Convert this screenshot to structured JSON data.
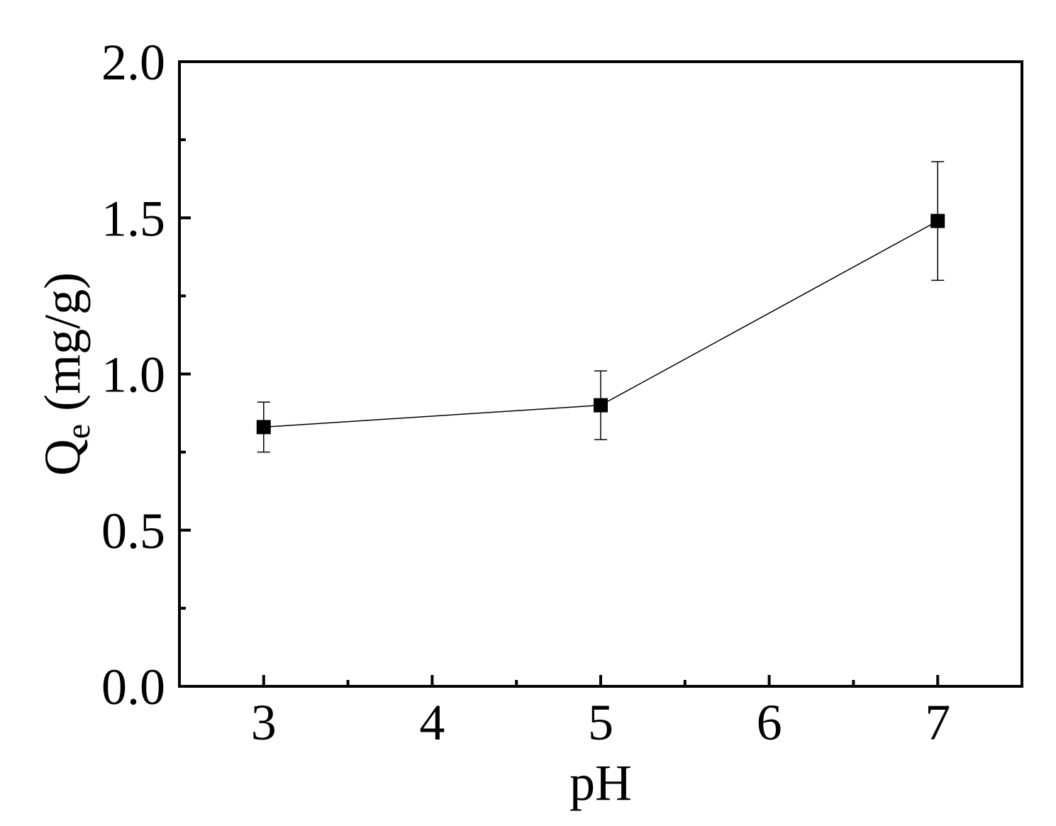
{
  "chart_data": {
    "type": "line",
    "title": "",
    "xlabel": "pH",
    "ylabel": {
      "main": "Q",
      "subscript": "e",
      "units": " (mg/g)"
    },
    "xlim": [
      2.5,
      7.5
    ],
    "ylim": [
      0.0,
      2.0
    ],
    "x_ticks": [
      3,
      4,
      5,
      6,
      7
    ],
    "x_tick_labels": [
      "3",
      "4",
      "5",
      "6",
      "7"
    ],
    "x_minor_ticks": [
      3.5,
      4.5,
      5.5,
      6.5
    ],
    "y_ticks": [
      0.0,
      0.5,
      1.0,
      1.5,
      2.0
    ],
    "y_tick_labels": [
      "0.0",
      "0.5",
      "1.0",
      "1.5",
      "2.0"
    ],
    "y_minor_ticks": [
      0.25,
      0.75,
      1.25,
      1.75
    ],
    "grid": false,
    "legend": "none",
    "series": [
      {
        "x": [
          3,
          5,
          7
        ],
        "y": [
          0.83,
          0.9,
          1.49
        ],
        "error_low": [
          0.75,
          0.79,
          1.3
        ],
        "error_high": [
          0.91,
          1.01,
          1.68
        ],
        "marker": "square",
        "color": "#000000"
      }
    ]
  }
}
